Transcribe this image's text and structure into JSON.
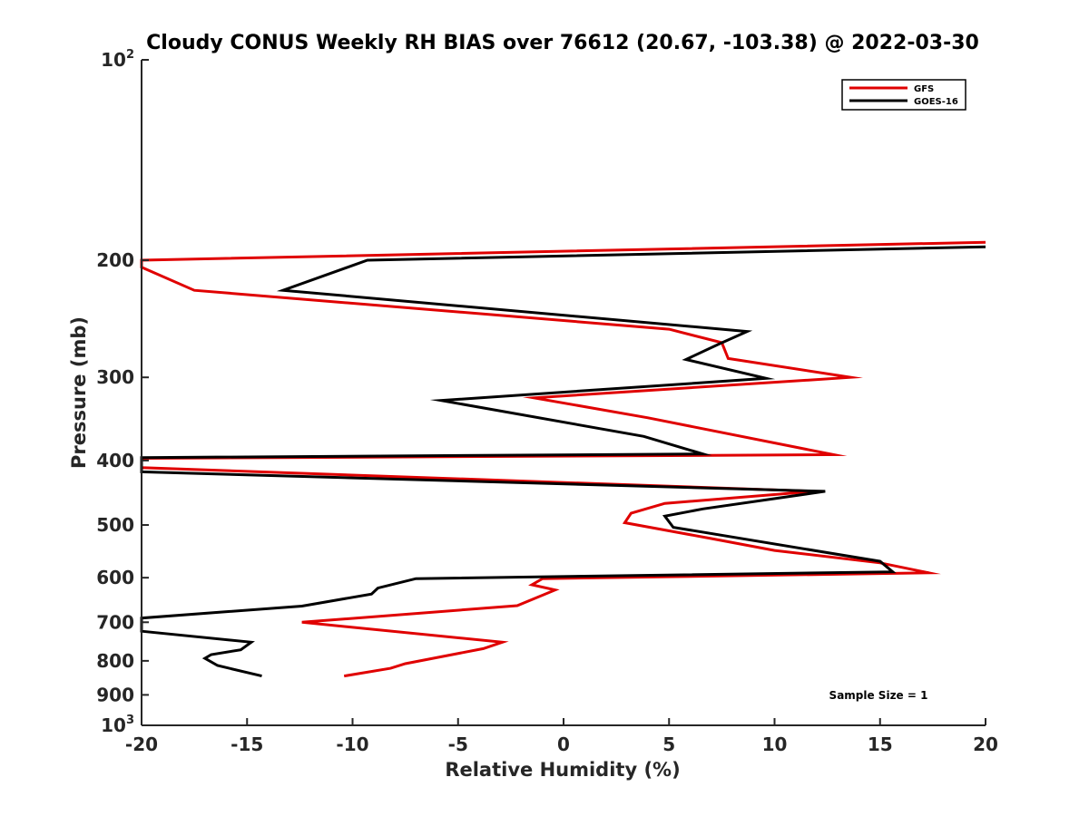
{
  "chart_data": {
    "type": "line",
    "title": "Cloudy CONUS Weekly RH BIAS over 76612 (20.67, -103.38) @ 2022-03-30",
    "xlabel": "Relative Humidity (%)",
    "ylabel": "Pressure (mb)",
    "xlim": [
      -20,
      20
    ],
    "ylim": [
      100,
      1000
    ],
    "y_scale": "log",
    "y_reversed": true,
    "x_ticks": [
      {
        "value": -20,
        "label": "-20"
      },
      {
        "value": -15,
        "label": "-15"
      },
      {
        "value": -10,
        "label": "-10"
      },
      {
        "value": -5,
        "label": "-5"
      },
      {
        "value": 0,
        "label": "0"
      },
      {
        "value": 5,
        "label": "5"
      },
      {
        "value": 10,
        "label": "10"
      },
      {
        "value": 15,
        "label": "15"
      },
      {
        "value": 20,
        "label": "20"
      }
    ],
    "y_ticks": [
      {
        "value": 100,
        "base": "10",
        "exp": "2"
      },
      {
        "value": 200,
        "label": "200"
      },
      {
        "value": 300,
        "label": "300"
      },
      {
        "value": 400,
        "label": "400"
      },
      {
        "value": 500,
        "label": "500"
      },
      {
        "value": 600,
        "label": "600"
      },
      {
        "value": 700,
        "label": "700"
      },
      {
        "value": 800,
        "label": "800"
      },
      {
        "value": 900,
        "label": "900"
      },
      {
        "value": 1000,
        "base": "10",
        "exp": "3"
      }
    ],
    "legend_position": "top-right",
    "annotation": "Sample Size = 1",
    "series": [
      {
        "name": "GFS",
        "color": "#e00000",
        "points": [
          [
            20.0,
            188
          ],
          [
            -20.0,
            200
          ],
          [
            -20.0,
            205
          ],
          [
            -17.5,
            222
          ],
          [
            5.0,
            254
          ],
          [
            7.5,
            266
          ],
          [
            7.8,
            281
          ],
          [
            13.6,
            300
          ],
          [
            -1.4,
            322
          ],
          [
            4.0,
            345
          ],
          [
            12.8,
            392
          ],
          [
            -20.0,
            397
          ],
          [
            -20.0,
            410
          ],
          [
            11.9,
            445
          ],
          [
            4.8,
            464
          ],
          [
            3.2,
            480
          ],
          [
            2.9,
            496
          ],
          [
            7.0,
            524
          ],
          [
            10.0,
            546
          ],
          [
            15.0,
            570
          ],
          [
            17.3,
            590
          ],
          [
            -1.0,
            602
          ],
          [
            -1.5,
            615
          ],
          [
            -0.4,
            626
          ],
          [
            -2.2,
            661
          ],
          [
            -12.4,
            700
          ],
          [
            -2.9,
            750
          ],
          [
            -3.8,
            767
          ],
          [
            -7.5,
            808
          ],
          [
            -8.2,
            821
          ],
          [
            -10.4,
            843
          ]
        ]
      },
      {
        "name": "GOES-16",
        "color": "#000000",
        "points": [
          [
            20.0,
            191
          ],
          [
            -9.3,
            200
          ],
          [
            -13.3,
            222
          ],
          [
            8.7,
            256
          ],
          [
            7.4,
            267
          ],
          [
            5.8,
            282
          ],
          [
            9.6,
            301
          ],
          [
            -5.8,
            325
          ],
          [
            3.8,
            368
          ],
          [
            6.6,
            391
          ],
          [
            -20.0,
            396
          ],
          [
            -20.0,
            416
          ],
          [
            12.4,
            445
          ],
          [
            6.6,
            473
          ],
          [
            4.8,
            485
          ],
          [
            5.2,
            504
          ],
          [
            15.0,
            567
          ],
          [
            15.6,
            588
          ],
          [
            -7.0,
            602
          ],
          [
            -8.8,
            622
          ],
          [
            -9.1,
            635
          ],
          [
            -12.4,
            662
          ],
          [
            -20.0,
            690
          ],
          [
            -20.0,
            722
          ],
          [
            -14.8,
            750
          ],
          [
            -15.3,
            770
          ],
          [
            -16.7,
            783
          ],
          [
            -17.0,
            793
          ],
          [
            -16.4,
            813
          ],
          [
            -14.3,
            843
          ]
        ]
      }
    ]
  }
}
